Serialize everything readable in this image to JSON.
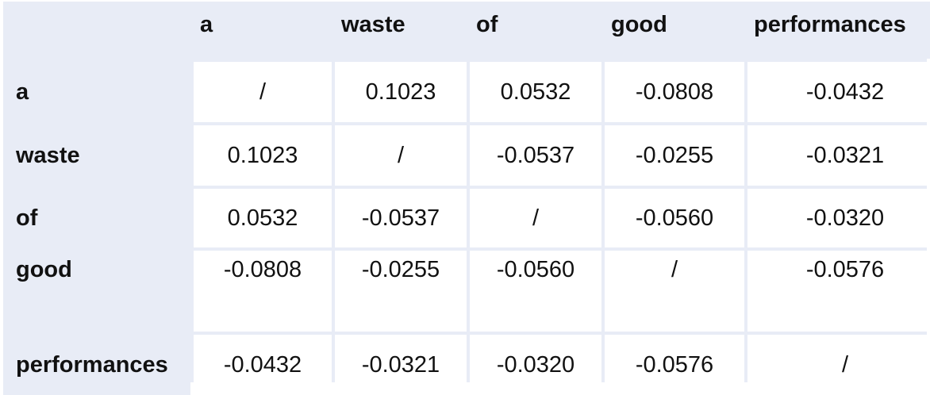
{
  "table": {
    "columns": [
      "a",
      "waste",
      "of",
      "good",
      "performances"
    ],
    "rows": [
      {
        "label": "a",
        "cells": [
          "/",
          "0.1023",
          "0.0532",
          "-0.0808",
          "-0.0432"
        ]
      },
      {
        "label": "waste",
        "cells": [
          "0.1023",
          "/",
          "-0.0537",
          "-0.0255",
          "-0.0321"
        ]
      },
      {
        "label": "of",
        "cells": [
          "0.0532",
          "-0.0537",
          "/",
          "-0.0560",
          "-0.0320"
        ]
      },
      {
        "label": "good",
        "cells": [
          "-0.0808",
          "-0.0255",
          "-0.0560",
          "/",
          "-0.0576"
        ]
      },
      {
        "label": "performances",
        "cells": [
          "-0.0432",
          "-0.0321",
          "-0.0320",
          "-0.0576",
          "/"
        ]
      }
    ]
  },
  "chart_data": {
    "type": "table",
    "categories": [
      "a",
      "waste",
      "of",
      "good",
      "performances"
    ],
    "rows": [
      "a",
      "waste",
      "of",
      "good",
      "performances"
    ],
    "values": [
      [
        null,
        0.1023,
        0.0532,
        -0.0808,
        -0.0432
      ],
      [
        0.1023,
        null,
        -0.0537,
        -0.0255,
        -0.0321
      ],
      [
        0.0532,
        -0.0537,
        null,
        -0.056,
        -0.032
      ],
      [
        -0.0808,
        -0.0255,
        -0.056,
        null,
        -0.0576
      ],
      [
        -0.0432,
        -0.0321,
        -0.032,
        -0.0576,
        null
      ]
    ],
    "title": "",
    "xlabel": "",
    "ylabel": ""
  },
  "colors": {
    "header_background": "#e8ecf6",
    "cell_background": "#ffffff",
    "text": "#111111"
  }
}
